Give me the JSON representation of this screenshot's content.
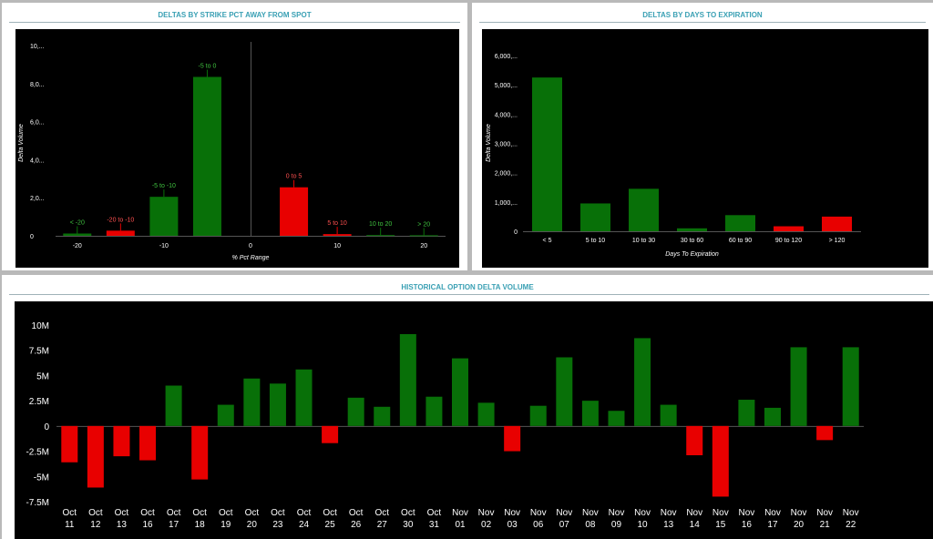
{
  "panels": {
    "strike": {
      "title": "DELTAS BY STRIKE PCT AWAY FROM SPOT"
    },
    "expiry": {
      "title": "DELTAS BY DAYS TO EXPIRATION"
    },
    "historical": {
      "title": "HISTORICAL OPTION DELTA VOLUME"
    }
  },
  "colors": {
    "positive": "#087008",
    "negative": "#e80000",
    "background": "#000000",
    "axis_text": "#ffffff"
  },
  "chart_data": [
    {
      "id": "strike",
      "type": "bar",
      "title": "DELTAS BY STRIKE PCT AWAY FROM SPOT",
      "xlabel": "% Pct Range",
      "ylabel": "Delta Volume",
      "xticks": [
        "-20",
        "-10",
        "0",
        "10",
        "20"
      ],
      "xtick_values": [
        -20,
        -10,
        0,
        10,
        20
      ],
      "xlim": [
        -22.5,
        22.5
      ],
      "yticks": [
        "0",
        "2,0...",
        "4,0...",
        "6,0...",
        "8,0...",
        "10,..."
      ],
      "ytick_values": [
        0,
        2000,
        4000,
        6000,
        8000,
        10000
      ],
      "ylim": [
        0,
        10000
      ],
      "bars": [
        {
          "label": "< -20",
          "center": -20,
          "value": 120,
          "sign": "positive"
        },
        {
          "label": "-20 to -10",
          "center": -15,
          "value": 270,
          "sign": "negative"
        },
        {
          "label": "-5 to -10",
          "center": -10,
          "value": 2050,
          "sign": "positive"
        },
        {
          "label": "-5 to 0",
          "center": -5,
          "value": 8350,
          "sign": "positive"
        },
        {
          "label": "0 to 5",
          "center": 5,
          "value": 2550,
          "sign": "negative"
        },
        {
          "label": "5 to 10",
          "center": 10,
          "value": 90,
          "sign": "negative"
        },
        {
          "label": "10 to 20",
          "center": 15,
          "value": 40,
          "sign": "positive"
        },
        {
          "label": "> 20",
          "center": 20,
          "value": 30,
          "sign": "positive"
        }
      ]
    },
    {
      "id": "expiry",
      "type": "bar",
      "title": "DELTAS BY DAYS TO EXPIRATION",
      "xlabel": "Days To Expiration",
      "ylabel": "Delta Volume",
      "categories": [
        "< 5",
        "5 to 10",
        "10 to 30",
        "30 to 60",
        "60 to 90",
        "90 to 120",
        "> 120"
      ],
      "values": [
        5250,
        950,
        1450,
        100,
        550,
        170,
        500
      ],
      "signs": [
        "positive",
        "positive",
        "positive",
        "positive",
        "positive",
        "negative",
        "negative"
      ],
      "yticks": [
        "0",
        "1,000,...",
        "2,000,...",
        "3,000,...",
        "4,000,...",
        "5,000,...",
        "6,000,..."
      ],
      "ytick_values": [
        0,
        1000,
        2000,
        3000,
        4000,
        5000,
        6000
      ],
      "ylim": [
        0,
        6000
      ]
    },
    {
      "id": "historical",
      "type": "bar",
      "title": "HISTORICAL OPTION DELTA VOLUME",
      "categories": [
        [
          "Oct",
          "11"
        ],
        [
          "Oct",
          "12"
        ],
        [
          "Oct",
          "13"
        ],
        [
          "Oct",
          "16"
        ],
        [
          "Oct",
          "17"
        ],
        [
          "Oct",
          "18"
        ],
        [
          "Oct",
          "19"
        ],
        [
          "Oct",
          "20"
        ],
        [
          "Oct",
          "23"
        ],
        [
          "Oct",
          "24"
        ],
        [
          "Oct",
          "25"
        ],
        [
          "Oct",
          "26"
        ],
        [
          "Oct",
          "27"
        ],
        [
          "Oct",
          "30"
        ],
        [
          "Oct",
          "31"
        ],
        [
          "Nov",
          "01"
        ],
        [
          "Nov",
          "02"
        ],
        [
          "Nov",
          "03"
        ],
        [
          "Nov",
          "06"
        ],
        [
          "Nov",
          "07"
        ],
        [
          "Nov",
          "08"
        ],
        [
          "Nov",
          "09"
        ],
        [
          "Nov",
          "10"
        ],
        [
          "Nov",
          "13"
        ],
        [
          "Nov",
          "14"
        ],
        [
          "Nov",
          "15"
        ],
        [
          "Nov",
          "16"
        ],
        [
          "Nov",
          "17"
        ],
        [
          "Nov",
          "20"
        ],
        [
          "Nov",
          "21"
        ],
        [
          "Nov",
          "22"
        ]
      ],
      "values": [
        -3.6,
        -6.1,
        -3.0,
        -3.4,
        4.0,
        -5.3,
        2.1,
        4.7,
        4.2,
        5.6,
        -1.7,
        2.8,
        1.9,
        9.1,
        2.9,
        6.7,
        2.3,
        -2.5,
        2.0,
        6.8,
        2.5,
        1.5,
        8.7,
        2.1,
        -2.9,
        -7.0,
        2.6,
        1.8,
        7.8,
        -1.4,
        7.8
      ],
      "value_unit": "M",
      "yticks": [
        "-7.5M",
        "-5M",
        "-2.5M",
        "0",
        "2.5M",
        "5M",
        "7.5M",
        "10M"
      ],
      "ytick_values": [
        -7.5,
        -5,
        -2.5,
        0,
        2.5,
        5,
        7.5,
        10
      ],
      "ylim": [
        -7.5,
        10
      ]
    }
  ]
}
